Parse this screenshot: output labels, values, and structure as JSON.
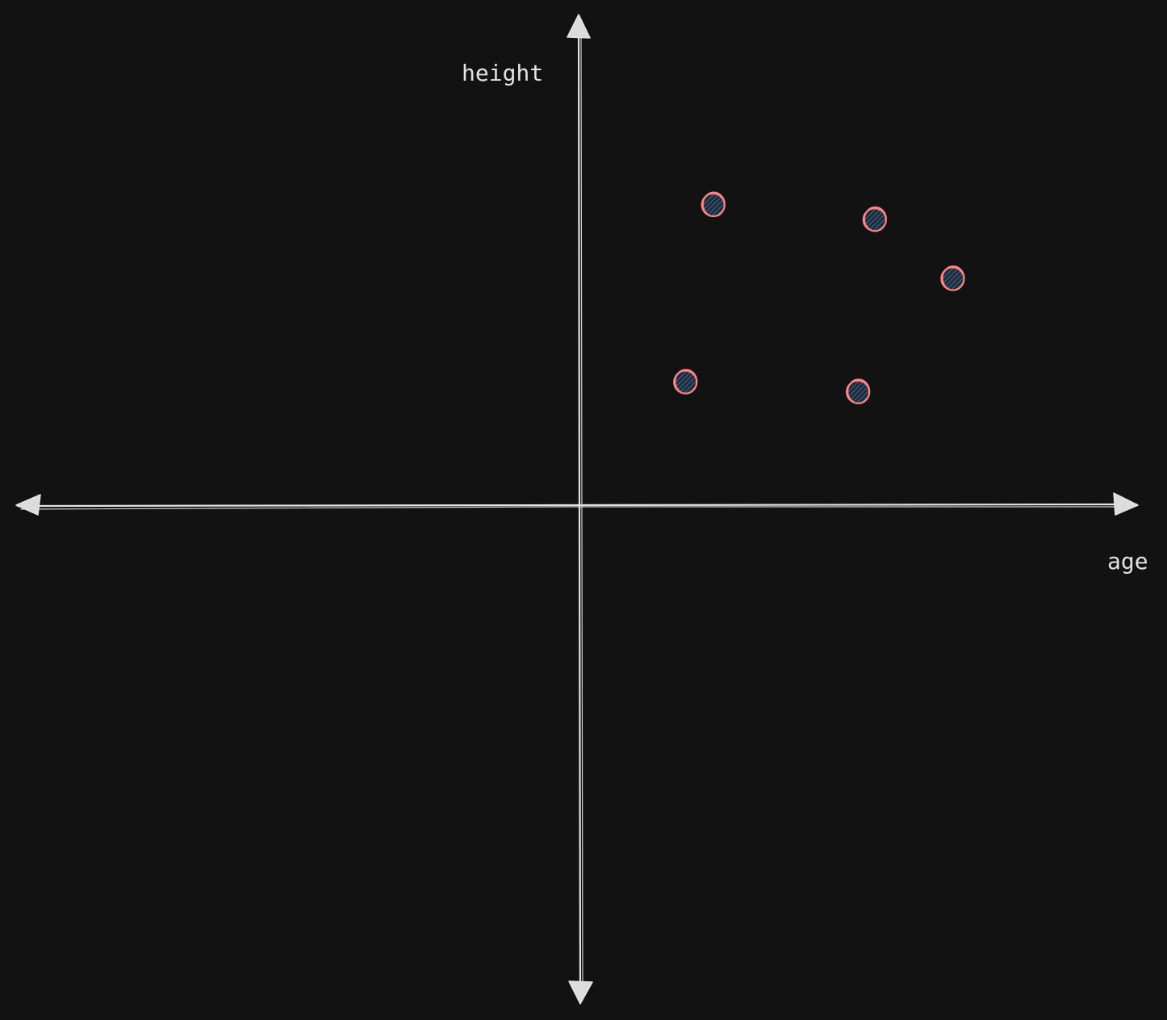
{
  "chart_data": {
    "type": "scatter",
    "title": "",
    "xlabel": "age",
    "ylabel": "height",
    "xlim": [
      -10,
      10
    ],
    "ylim": [
      -10,
      10
    ],
    "grid": false,
    "marker_stroke": "#ff8383",
    "marker_fill": "#1d2b3a",
    "axis_color": "#e3e3e3",
    "background": "#121212",
    "series": [
      {
        "points": [
          {
            "x": 2.4,
            "y": 6.1
          },
          {
            "x": 5.3,
            "y": 5.8
          },
          {
            "x": 6.7,
            "y": 4.6
          },
          {
            "x": 1.9,
            "y": 2.5
          },
          {
            "x": 5.0,
            "y": 2.3
          }
        ]
      }
    ]
  }
}
